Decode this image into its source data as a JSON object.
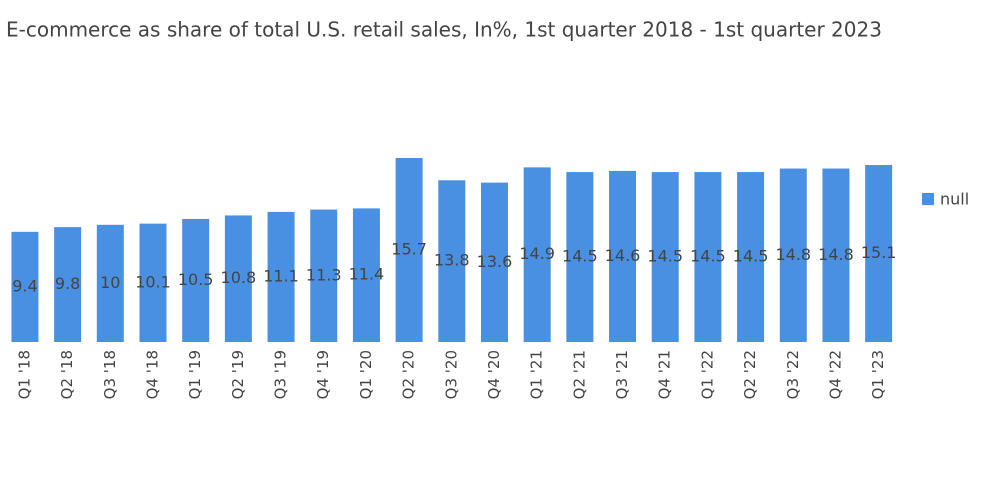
{
  "chart_data": {
    "type": "bar",
    "title": "E-commerce as share of total U.S. retail sales, In%,  1st quarter 2018 - 1st quarter 2023",
    "categories": [
      "Q1 '18",
      "Q2 '18",
      "Q3 '18",
      "Q4 '18",
      "Q1 '19",
      "Q2 '19",
      "Q3 '19",
      "Q4 '19",
      "Q1 '20",
      "Q2 '20",
      "Q3 '20",
      "Q4 '20",
      "Q1 '21",
      "Q2 '21",
      "Q3 '21",
      "Q4 '21",
      "Q1 '22",
      "Q2 '22",
      "Q3 '22",
      "Q4 '22",
      "Q1 '23"
    ],
    "series": [
      {
        "name": "null",
        "color": "#4a90e2",
        "values": [
          9.4,
          9.8,
          10,
          10.1,
          10.5,
          10.8,
          11.1,
          11.3,
          11.4,
          15.7,
          13.8,
          13.6,
          14.9,
          14.5,
          14.6,
          14.5,
          14.5,
          14.5,
          14.8,
          14.8,
          15.1
        ]
      }
    ]
  }
}
